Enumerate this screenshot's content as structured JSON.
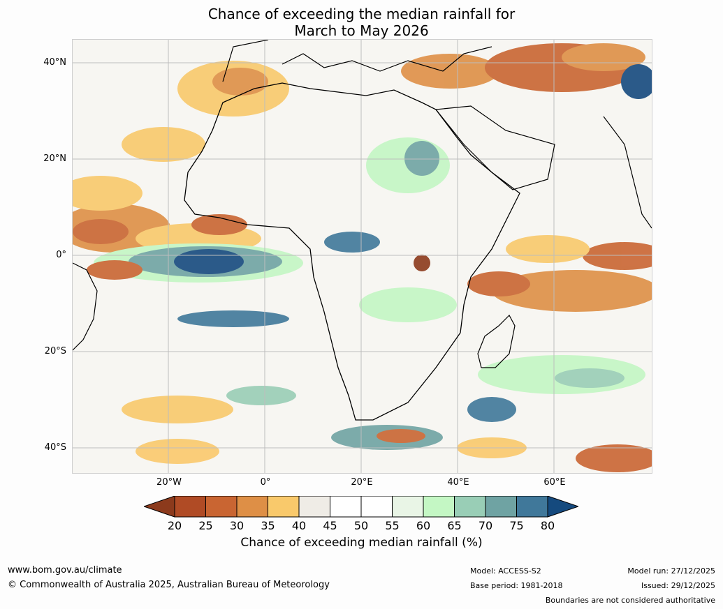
{
  "title": {
    "line1": "Chance of exceeding the median rainfall for",
    "line2": "March to May 2026"
  },
  "map": {
    "lat_labels": [
      "40°N",
      "20°N",
      "0°",
      "20°S",
      "40°S"
    ],
    "lon_labels": [
      "20°W",
      "0°",
      "20°E",
      "40°E",
      "60°E"
    ],
    "region": "Africa and surrounding oceans",
    "legend_icon": "colorbar"
  },
  "colorbar": {
    "ticks": [
      "20",
      "25",
      "30",
      "35",
      "40",
      "45",
      "50",
      "55",
      "60",
      "65",
      "70",
      "75",
      "80"
    ],
    "colors": [
      "#8c3a1c",
      "#b04b25",
      "#c96532",
      "#de8f46",
      "#f9c96b",
      "#efece6",
      "#ffffff",
      "#ffffff",
      "#e9f5e6",
      "#c4f7c4",
      "#99ceb6",
      "#6fa3a3",
      "#40789a",
      "#154a7e"
    ],
    "label": "Chance of exceeding median rainfall (%)"
  },
  "footer": {
    "website": "www.bom.gov.au/climate",
    "copyright": "© Commonwealth of Australia 2025, Australian Bureau of Meteorology",
    "model": "Model: ACCESS-S2",
    "base_period": "Base period: 1981-2018",
    "model_run": "Model run: 27/12/2025",
    "issued": "Issued: 29/12/2025",
    "disclaimer": "Boundaries are not considered authoritative"
  }
}
